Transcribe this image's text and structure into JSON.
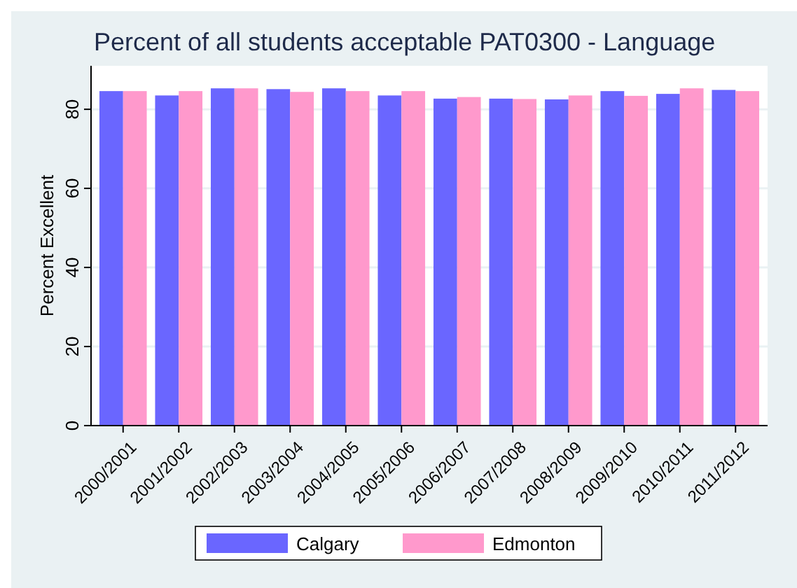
{
  "chart_data": {
    "type": "bar",
    "title": "Percent of all students acceptable  PAT0300 - Language",
    "ylabel": "Percent Excellent",
    "categories": [
      "2000/2001",
      "2001/2002",
      "2002/2003",
      "2003/2004",
      "2004/2005",
      "2005/2006",
      "2006/2007",
      "2007/2008",
      "2008/2009",
      "2009/2010",
      "2010/2011",
      "2011/2012"
    ],
    "series": [
      {
        "name": "Calgary",
        "color": "#6a66ff",
        "values": [
          84.6,
          83.5,
          85.3,
          85.1,
          85.3,
          83.5,
          82.7,
          82.7,
          82.5,
          84.6,
          83.9,
          84.9
        ]
      },
      {
        "name": "Edmonton",
        "color": "#ff99cc",
        "values": [
          84.6,
          84.6,
          85.3,
          84.4,
          84.6,
          84.6,
          83.1,
          82.6,
          83.5,
          83.4,
          85.3,
          84.6
        ]
      }
    ],
    "ylim": [
      0,
      91
    ],
    "yticks": [
      0,
      20,
      40,
      60,
      80
    ],
    "grid": "y",
    "legend": "bottom"
  }
}
